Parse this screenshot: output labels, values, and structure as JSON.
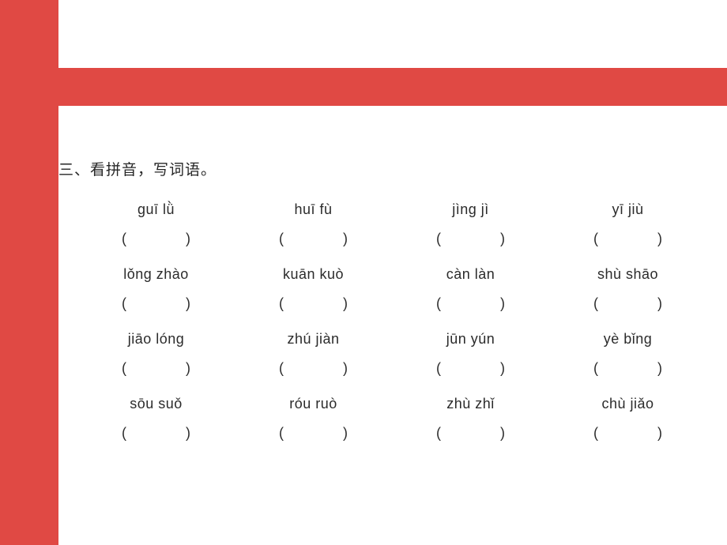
{
  "colors": {
    "red": "#e04944",
    "background": "#ffffff",
    "text": "#262626"
  },
  "title": "三、看拼音，写词语。",
  "blank_template": "(               )",
  "rows": [
    {
      "items": [
        "guī lǜ",
        "huī fù",
        "jìng jì",
        "yī jiù"
      ]
    },
    {
      "items": [
        "lǒng zhào",
        "kuān kuò",
        "càn làn",
        "shù shāo"
      ]
    },
    {
      "items": [
        "jiāo lóng",
        "zhú jiàn",
        "jūn yún",
        "yè bǐng"
      ]
    },
    {
      "items": [
        "sōu suǒ",
        "róu ruò",
        "zhù zhǐ",
        "chù jiǎo"
      ]
    }
  ]
}
